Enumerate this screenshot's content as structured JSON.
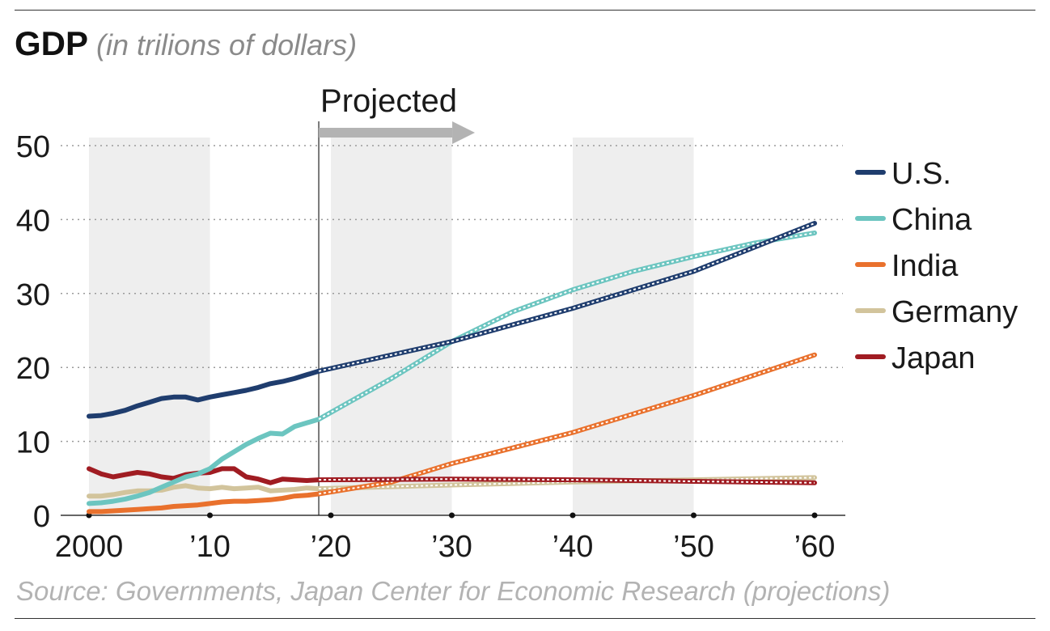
{
  "header": {
    "title": "GDP",
    "subtitle": "(in trilions of dollars)"
  },
  "source": "Source: Governments, Japan Center for Economic Research (projections)",
  "colors": {
    "us": "#1f3d6e",
    "china": "#6cc5c0",
    "india": "#e9712d",
    "germany": "#d2c49c",
    "japan": "#a01c22",
    "projected_arrow": "#b3b3b3",
    "decade_band": "#eeeeee",
    "grid": "#9a9a9a"
  },
  "chart_data": {
    "type": "line",
    "projection_label": "Projected",
    "projection_start": 2019,
    "x_ticks": [
      {
        "value": 2000,
        "label": "2000"
      },
      {
        "value": 2010,
        "label": "’10"
      },
      {
        "value": 2020,
        "label": "’20"
      },
      {
        "value": 2030,
        "label": "’30"
      },
      {
        "value": 2040,
        "label": "’40"
      },
      {
        "value": 2050,
        "label": "’50"
      },
      {
        "value": 2060,
        "label": "’60"
      }
    ],
    "y_ticks": [
      0,
      10,
      20,
      30,
      40,
      50
    ],
    "xlim": [
      2000,
      2060
    ],
    "ylim": [
      0,
      50
    ],
    "grid": "horizontal dotted",
    "legend_position": "right",
    "shaded_decades": [
      [
        2000,
        2010
      ],
      [
        2020,
        2030
      ],
      [
        2040,
        2050
      ]
    ],
    "series": [
      {
        "key": "us",
        "name": "U.S.",
        "color": "#1f3d6e",
        "actual": [
          [
            2000,
            13.4
          ],
          [
            2001,
            13.5
          ],
          [
            2002,
            13.8
          ],
          [
            2003,
            14.2
          ],
          [
            2004,
            14.8
          ],
          [
            2005,
            15.3
          ],
          [
            2006,
            15.8
          ],
          [
            2007,
            16.0
          ],
          [
            2008,
            16.0
          ],
          [
            2009,
            15.6
          ],
          [
            2010,
            16.0
          ],
          [
            2011,
            16.3
          ],
          [
            2012,
            16.6
          ],
          [
            2013,
            16.9
          ],
          [
            2014,
            17.3
          ],
          [
            2015,
            17.8
          ],
          [
            2016,
            18.1
          ],
          [
            2017,
            18.5
          ],
          [
            2018,
            19.0
          ],
          [
            2019,
            19.5
          ]
        ],
        "projected": [
          [
            2019,
            19.5
          ],
          [
            2030,
            23.5
          ],
          [
            2040,
            28.0
          ],
          [
            2050,
            33.0
          ],
          [
            2060,
            39.5
          ]
        ]
      },
      {
        "key": "china",
        "name": "China",
        "color": "#6cc5c0",
        "actual": [
          [
            2000,
            1.6
          ],
          [
            2001,
            1.7
          ],
          [
            2002,
            1.9
          ],
          [
            2003,
            2.2
          ],
          [
            2004,
            2.6
          ],
          [
            2005,
            3.1
          ],
          [
            2006,
            3.8
          ],
          [
            2007,
            4.5
          ],
          [
            2008,
            5.2
          ],
          [
            2009,
            5.6
          ],
          [
            2010,
            6.3
          ],
          [
            2011,
            7.6
          ],
          [
            2012,
            8.6
          ],
          [
            2013,
            9.6
          ],
          [
            2014,
            10.4
          ],
          [
            2015,
            11.1
          ],
          [
            2016,
            11.0
          ],
          [
            2017,
            12.0
          ],
          [
            2018,
            12.5
          ],
          [
            2019,
            13.0
          ]
        ],
        "projected": [
          [
            2019,
            13.0
          ],
          [
            2025,
            18.5
          ],
          [
            2030,
            23.5
          ],
          [
            2035,
            27.5
          ],
          [
            2040,
            30.5
          ],
          [
            2045,
            33.0
          ],
          [
            2050,
            35.0
          ],
          [
            2055,
            36.8
          ],
          [
            2060,
            38.2
          ]
        ]
      },
      {
        "key": "india",
        "name": "India",
        "color": "#e9712d",
        "actual": [
          [
            2000,
            0.5
          ],
          [
            2001,
            0.5
          ],
          [
            2002,
            0.6
          ],
          [
            2003,
            0.7
          ],
          [
            2004,
            0.8
          ],
          [
            2005,
            0.9
          ],
          [
            2006,
            1.0
          ],
          [
            2007,
            1.2
          ],
          [
            2008,
            1.3
          ],
          [
            2009,
            1.4
          ],
          [
            2010,
            1.6
          ],
          [
            2011,
            1.8
          ],
          [
            2012,
            1.9
          ],
          [
            2013,
            1.9
          ],
          [
            2014,
            2.0
          ],
          [
            2015,
            2.1
          ],
          [
            2016,
            2.3
          ],
          [
            2017,
            2.6
          ],
          [
            2018,
            2.7
          ],
          [
            2019,
            2.9
          ]
        ],
        "projected": [
          [
            2019,
            2.9
          ],
          [
            2025,
            4.5
          ],
          [
            2030,
            7.0
          ],
          [
            2040,
            11.2
          ],
          [
            2050,
            16.2
          ],
          [
            2060,
            21.7
          ]
        ]
      },
      {
        "key": "germany",
        "name": "Germany",
        "color": "#d2c49c",
        "actual": [
          [
            2000,
            2.6
          ],
          [
            2001,
            2.6
          ],
          [
            2002,
            2.8
          ],
          [
            2003,
            3.1
          ],
          [
            2004,
            3.3
          ],
          [
            2005,
            3.3
          ],
          [
            2006,
            3.4
          ],
          [
            2007,
            3.8
          ],
          [
            2008,
            4.0
          ],
          [
            2009,
            3.7
          ],
          [
            2010,
            3.6
          ],
          [
            2011,
            3.8
          ],
          [
            2012,
            3.6
          ],
          [
            2013,
            3.7
          ],
          [
            2014,
            3.8
          ],
          [
            2015,
            3.3
          ],
          [
            2016,
            3.4
          ],
          [
            2017,
            3.5
          ],
          [
            2018,
            3.7
          ],
          [
            2019,
            3.6
          ]
        ],
        "projected": [
          [
            2019,
            3.6
          ],
          [
            2030,
            4.1
          ],
          [
            2040,
            4.5
          ],
          [
            2050,
            4.8
          ],
          [
            2060,
            5.1
          ]
        ]
      },
      {
        "key": "japan",
        "name": "Japan",
        "color": "#a01c22",
        "actual": [
          [
            2000,
            6.3
          ],
          [
            2001,
            5.6
          ],
          [
            2002,
            5.2
          ],
          [
            2003,
            5.5
          ],
          [
            2004,
            5.8
          ],
          [
            2005,
            5.6
          ],
          [
            2006,
            5.2
          ],
          [
            2007,
            5.0
          ],
          [
            2008,
            5.5
          ],
          [
            2009,
            5.7
          ],
          [
            2010,
            5.8
          ],
          [
            2011,
            6.3
          ],
          [
            2012,
            6.3
          ],
          [
            2013,
            5.2
          ],
          [
            2014,
            4.9
          ],
          [
            2015,
            4.4
          ],
          [
            2016,
            4.9
          ],
          [
            2017,
            4.8
          ],
          [
            2018,
            4.7
          ],
          [
            2019,
            4.8
          ]
        ],
        "projected": [
          [
            2019,
            4.8
          ],
          [
            2030,
            4.9
          ],
          [
            2040,
            4.8
          ],
          [
            2050,
            4.6
          ],
          [
            2060,
            4.4
          ]
        ]
      }
    ]
  }
}
